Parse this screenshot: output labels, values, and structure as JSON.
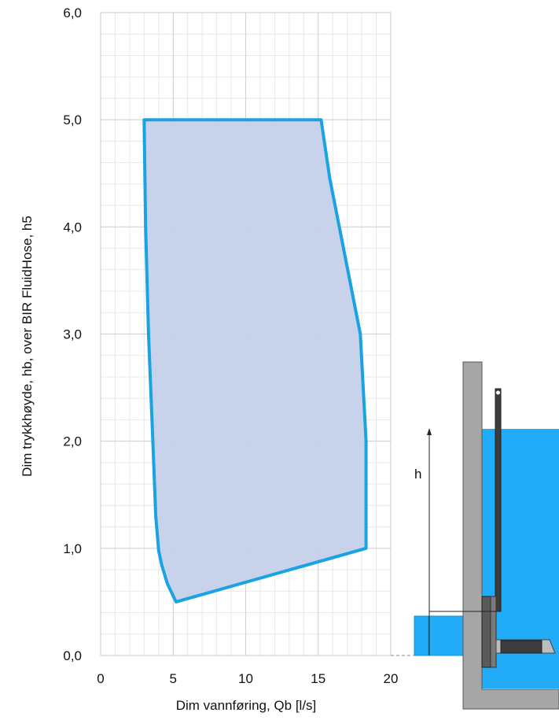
{
  "chart_data": {
    "type": "area",
    "xlabel": "Dim vannføring, Qb [l/s]",
    "ylabel": "Dim trykkhøyde, hb, over BIR FluidHose, h5",
    "xlim": [
      0,
      20
    ],
    "ylim": [
      0,
      6
    ],
    "x_ticks": [
      {
        "value": 0,
        "label": "0"
      },
      {
        "value": 5,
        "label": "5"
      },
      {
        "value": 10,
        "label": "10"
      },
      {
        "value": 15,
        "label": "15"
      },
      {
        "value": 20,
        "label": "20"
      }
    ],
    "y_ticks": [
      {
        "value": 0,
        "label": "0,0"
      },
      {
        "value": 1,
        "label": "1,0"
      },
      {
        "value": 2,
        "label": "2,0"
      },
      {
        "value": 3,
        "label": "3,0"
      },
      {
        "value": 4,
        "label": "4,0"
      },
      {
        "value": 5,
        "label": "5,0"
      },
      {
        "value": 6,
        "label": "6,0"
      }
    ],
    "minor_grid_step": {
      "x": 1,
      "y": 0.2
    },
    "grid": true,
    "series": [
      {
        "outline": [
          [
            3.0,
            5.0
          ],
          [
            15.2,
            5.0
          ],
          [
            15.8,
            4.45
          ],
          [
            17.9,
            3.0
          ],
          [
            18.3,
            2.0
          ],
          [
            18.3,
            1.0
          ],
          [
            5.2,
            0.5
          ],
          [
            4.6,
            0.67
          ],
          [
            4.2,
            0.85
          ],
          [
            4.0,
            0.98
          ],
          [
            3.8,
            1.3
          ],
          [
            3.6,
            2.0
          ],
          [
            3.3,
            3.0
          ],
          [
            3.1,
            4.0
          ],
          [
            3.0,
            5.0
          ]
        ],
        "fill": "#c5d0ea",
        "stroke": "#1aa3e2"
      }
    ],
    "colors": {
      "grid_major": "#d0d0d0",
      "grid_minor": "#e8e8e8",
      "water": "#22abf7",
      "wall": "#a6a6a6",
      "device": "#3c3c3c"
    }
  },
  "diagram": {
    "height_label": "h"
  }
}
